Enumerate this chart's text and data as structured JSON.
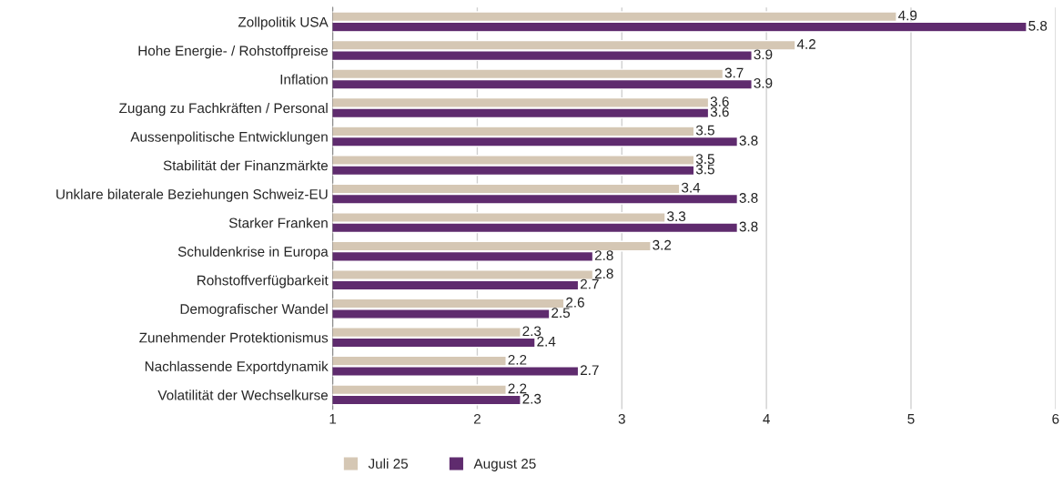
{
  "chart_data": {
    "type": "bar",
    "orientation": "horizontal",
    "categories": [
      "Zollpolitik USA",
      "Hohe Energie- / Rohstoffpreise",
      "Inflation",
      "Zugang zu Fachkräften / Personal",
      "Aussenpolitische Entwicklungen",
      "Stabilität der Finanzmärkte",
      "Unklare bilaterale Beziehungen Schweiz-EU",
      "Starker Franken",
      "Schuldenkrise in Europa",
      "Rohstoffverfügbarkeit",
      "Demografischer Wandel",
      "Zunehmender Protektionismus",
      "Nachlassende Exportdynamik",
      "Volatilität der Wechselkurse"
    ],
    "series": [
      {
        "name": "Juli 25",
        "color": "#d5c7b4",
        "values": [
          4.9,
          4.2,
          3.7,
          3.6,
          3.5,
          3.5,
          3.4,
          3.3,
          3.2,
          2.8,
          2.6,
          2.3,
          2.2,
          2.2
        ]
      },
      {
        "name": "August 25",
        "color": "#5f2b6e",
        "values": [
          5.8,
          3.9,
          3.9,
          3.6,
          3.8,
          3.5,
          3.8,
          3.8,
          2.8,
          2.7,
          2.5,
          2.4,
          2.7,
          2.3
        ]
      }
    ],
    "xlim": [
      1,
      6
    ],
    "xticks": [
      1,
      2,
      3,
      4,
      5,
      6
    ],
    "grid": "x",
    "data_labels": true,
    "legend": "bottom left"
  }
}
